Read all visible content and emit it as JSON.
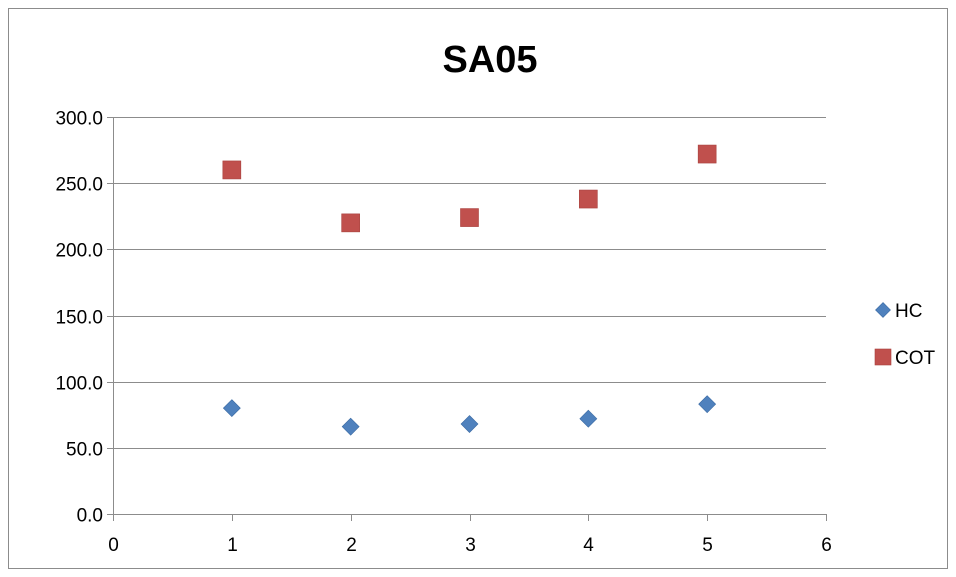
{
  "chart_data": {
    "type": "scatter",
    "title": "SA05",
    "xlabel": "",
    "ylabel": "",
    "xlim": [
      0,
      6
    ],
    "ylim": [
      0,
      300
    ],
    "x_ticks": [
      "0",
      "1",
      "2",
      "3",
      "4",
      "5",
      "6"
    ],
    "y_ticks": [
      "0.0",
      "50.0",
      "100.0",
      "150.0",
      "200.0",
      "250.0",
      "300.0"
    ],
    "grid": "horizontal",
    "legend_position": "right",
    "series": [
      {
        "name": "HC",
        "marker": "diamond",
        "color": "#4f81bd",
        "points": [
          {
            "x": 1,
            "y": 80
          },
          {
            "x": 2,
            "y": 66
          },
          {
            "x": 3,
            "y": 68
          },
          {
            "x": 4,
            "y": 72
          },
          {
            "x": 5,
            "y": 83
          }
        ]
      },
      {
        "name": "COT",
        "marker": "square",
        "color": "#c0504d",
        "points": [
          {
            "x": 1,
            "y": 260
          },
          {
            "x": 2,
            "y": 220
          },
          {
            "x": 3,
            "y": 224
          },
          {
            "x": 4,
            "y": 238
          },
          {
            "x": 5,
            "y": 272
          }
        ]
      }
    ]
  }
}
